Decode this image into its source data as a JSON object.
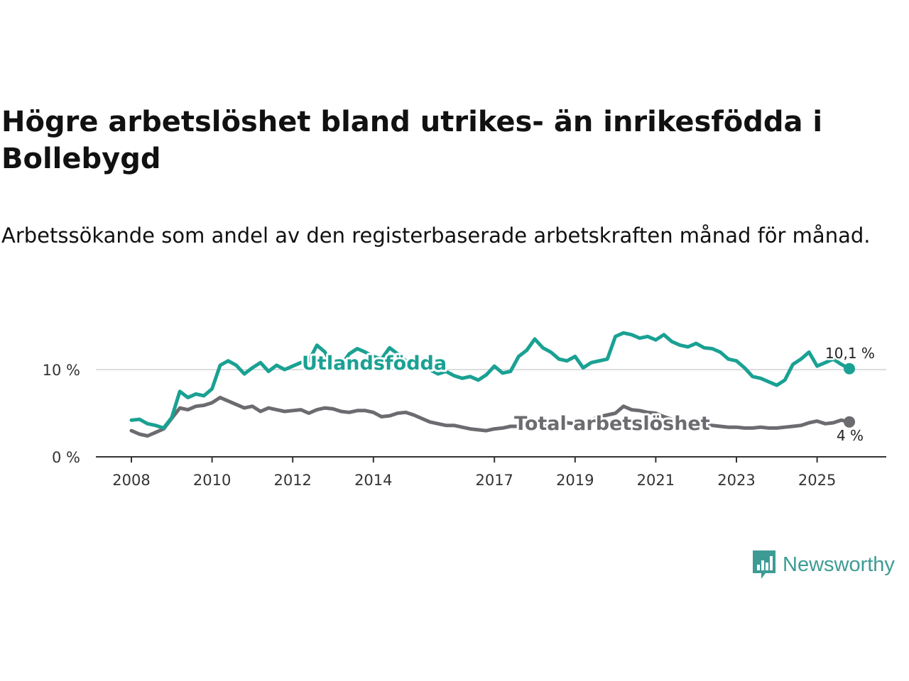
{
  "title": "Högre arbetslöshet bland utrikes- än inrikesfödda i Bollebygd",
  "subtitle": "Arbetssökande som andel av den registerbaserade arbetskraften månad för månad.",
  "brand": {
    "name": "Newsworthy",
    "color": "#3d9b95"
  },
  "chart_data": {
    "type": "line",
    "title": "Högre arbetslöshet bland utrikes- än inrikesfödda i Bollebygd",
    "ylabel": "",
    "xlabel": "",
    "ylim": [
      0,
      15
    ],
    "xlim": [
      2007.9,
      2026.5
    ],
    "y_ticks": [
      {
        "value": 0,
        "label": "0 %"
      },
      {
        "value": 10,
        "label": "10 %"
      }
    ],
    "x_ticks": [
      2008,
      2010,
      2012,
      2014,
      2017,
      2019,
      2021,
      2023,
      2025
    ],
    "grid": "horizontal",
    "series": [
      {
        "name": "Utlandsfödda",
        "color": "#1aa193",
        "label": "Utlandsfödda",
        "end_label": "10,1 %",
        "x": [
          2008.0,
          2008.2,
          2008.4,
          2008.6,
          2008.8,
          2009.0,
          2009.2,
          2009.4,
          2009.6,
          2009.8,
          2010.0,
          2010.2,
          2010.4,
          2010.6,
          2010.8,
          2011.0,
          2011.2,
          2011.4,
          2011.6,
          2011.8,
          2012.0,
          2012.2,
          2012.4,
          2012.6,
          2012.8,
          2013.0,
          2013.2,
          2013.4,
          2013.6,
          2013.8,
          2014.0,
          2014.2,
          2014.4,
          2014.6,
          2014.8,
          2015.0,
          2015.2,
          2015.4,
          2015.6,
          2015.8,
          2016.0,
          2016.2,
          2016.4,
          2016.6,
          2016.8,
          2017.0,
          2017.2,
          2017.4,
          2017.6,
          2017.8,
          2018.0,
          2018.2,
          2018.4,
          2018.6,
          2018.8,
          2019.0,
          2019.2,
          2019.4,
          2019.6,
          2019.8,
          2020.0,
          2020.2,
          2020.4,
          2020.6,
          2020.8,
          2021.0,
          2021.2,
          2021.4,
          2021.6,
          2021.8,
          2022.0,
          2022.2,
          2022.4,
          2022.6,
          2022.8,
          2023.0,
          2023.2,
          2023.4,
          2023.6,
          2023.8,
          2024.0,
          2024.2,
          2024.4,
          2024.6,
          2024.8,
          2025.0,
          2025.2,
          2025.4,
          2025.6,
          2025.8
        ],
        "y": [
          4.2,
          4.3,
          3.8,
          3.6,
          3.3,
          4.5,
          7.5,
          6.8,
          7.2,
          7.0,
          7.8,
          10.5,
          11.0,
          10.5,
          9.5,
          10.2,
          10.8,
          9.8,
          10.5,
          10.0,
          10.4,
          10.8,
          11.0,
          12.8,
          12.0,
          10.2,
          10.5,
          11.8,
          12.4,
          12.0,
          11.5,
          11.2,
          12.5,
          11.8,
          11.0,
          10.6,
          10.4,
          10.0,
          9.5,
          9.8,
          9.3,
          9.0,
          9.2,
          8.8,
          9.4,
          10.4,
          9.6,
          9.8,
          11.5,
          12.2,
          13.5,
          12.5,
          12.0,
          11.2,
          11.0,
          11.5,
          10.2,
          10.8,
          11.0,
          11.2,
          13.8,
          14.2,
          14.0,
          13.6,
          13.8,
          13.4,
          14.0,
          13.2,
          12.8,
          12.6,
          13.0,
          12.5,
          12.4,
          12.0,
          11.2,
          11.0,
          10.2,
          9.2,
          9.0,
          8.6,
          8.2,
          8.8,
          10.6,
          11.2,
          12.0,
          10.4,
          10.8,
          11.2,
          10.6,
          10.1
        ]
      },
      {
        "name": "Total arbetslöshet",
        "color": "#6b6b70",
        "label": "Total arbetslöshet",
        "end_label": "4 %",
        "x": [
          2008.0,
          2008.2,
          2008.4,
          2008.6,
          2008.8,
          2009.0,
          2009.2,
          2009.4,
          2009.6,
          2009.8,
          2010.0,
          2010.2,
          2010.4,
          2010.6,
          2010.8,
          2011.0,
          2011.2,
          2011.4,
          2011.6,
          2011.8,
          2012.0,
          2012.2,
          2012.4,
          2012.6,
          2012.8,
          2013.0,
          2013.2,
          2013.4,
          2013.6,
          2013.8,
          2014.0,
          2014.2,
          2014.4,
          2014.6,
          2014.8,
          2015.0,
          2015.2,
          2015.4,
          2015.6,
          2015.8,
          2016.0,
          2016.2,
          2016.4,
          2016.6,
          2016.8,
          2017.0,
          2017.2,
          2017.4,
          2017.6,
          2017.8,
          2018.0,
          2018.2,
          2018.4,
          2018.6,
          2018.8,
          2019.0,
          2019.2,
          2019.4,
          2019.6,
          2019.8,
          2020.0,
          2020.2,
          2020.4,
          2020.6,
          2020.8,
          2021.0,
          2021.2,
          2021.4,
          2021.6,
          2021.8,
          2022.0,
          2022.2,
          2022.4,
          2022.6,
          2022.8,
          2023.0,
          2023.2,
          2023.4,
          2023.6,
          2023.8,
          2024.0,
          2024.2,
          2024.4,
          2024.6,
          2024.8,
          2025.0,
          2025.2,
          2025.4,
          2025.6,
          2025.8
        ],
        "y": [
          3.0,
          2.6,
          2.4,
          2.8,
          3.2,
          4.4,
          5.6,
          5.4,
          5.8,
          5.9,
          6.2,
          6.8,
          6.4,
          6.0,
          5.6,
          5.8,
          5.2,
          5.6,
          5.4,
          5.2,
          5.3,
          5.4,
          5.0,
          5.4,
          5.6,
          5.5,
          5.2,
          5.1,
          5.3,
          5.3,
          5.1,
          4.6,
          4.7,
          5.0,
          5.1,
          4.8,
          4.4,
          4.0,
          3.8,
          3.6,
          3.6,
          3.4,
          3.2,
          3.1,
          3.0,
          3.2,
          3.3,
          3.5,
          3.5,
          3.4,
          3.6,
          3.7,
          3.8,
          3.8,
          3.9,
          3.8,
          3.9,
          4.2,
          4.6,
          4.8,
          5.0,
          5.8,
          5.4,
          5.3,
          5.1,
          5.0,
          4.6,
          4.3,
          4.0,
          3.9,
          3.8,
          3.7,
          3.6,
          3.5,
          3.4,
          3.4,
          3.3,
          3.3,
          3.4,
          3.3,
          3.3,
          3.4,
          3.5,
          3.6,
          3.9,
          4.1,
          3.8,
          3.9,
          4.2,
          4.0
        ]
      }
    ]
  }
}
